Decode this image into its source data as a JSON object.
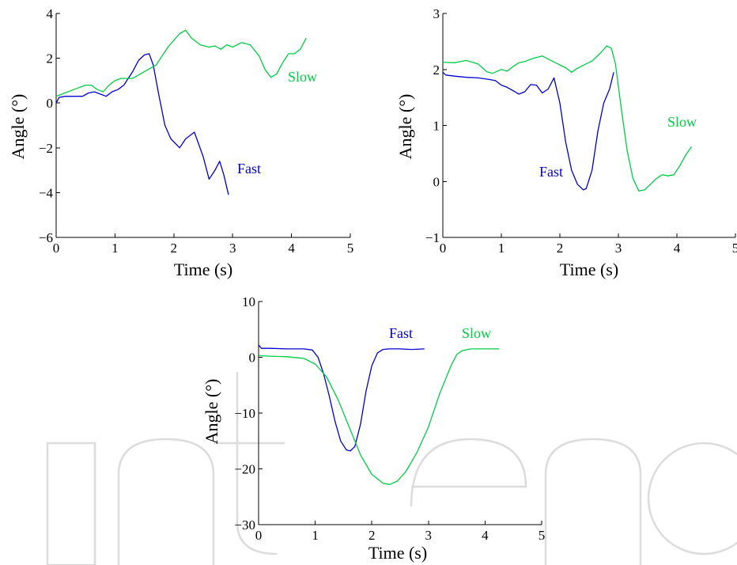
{
  "colors": {
    "fast": "#0000cc",
    "slow": "#00cc44",
    "watermark": "#dcdcdc"
  },
  "watermark": {
    "text": "IntechOpen"
  },
  "chart_data": [
    {
      "type": "line",
      "title": "",
      "xlabel": "Time (s)",
      "ylabel": "Angle (°)",
      "xlim": [
        0,
        5
      ],
      "ylim": [
        -6,
        4
      ],
      "xticks": [
        0,
        1,
        2,
        3,
        4,
        5
      ],
      "yticks": [
        -6,
        -4,
        -2,
        0,
        2,
        4
      ],
      "xtick_labels": [
        "0",
        "1",
        "2",
        "3",
        "4",
        "5"
      ],
      "ytick_labels": [
        "−6",
        "−4",
        "−2",
        "0",
        "2",
        "4"
      ],
      "grid": false,
      "series": [
        {
          "name": "Fast",
          "color": "#0000cc",
          "x": [
            0.0,
            0.05,
            0.15,
            0.3,
            0.45,
            0.55,
            0.65,
            0.75,
            0.85,
            0.95,
            1.05,
            1.15,
            1.3,
            1.4,
            1.5,
            1.58,
            1.65,
            1.75,
            1.85,
            1.95,
            2.1,
            2.2,
            2.35,
            2.5,
            2.6,
            2.7,
            2.78,
            2.85,
            2.93
          ],
          "y": [
            0.0,
            0.25,
            0.3,
            0.3,
            0.3,
            0.45,
            0.5,
            0.4,
            0.3,
            0.5,
            0.6,
            0.8,
            1.4,
            1.9,
            2.15,
            2.2,
            1.7,
            0.3,
            -1.0,
            -1.6,
            -2.0,
            -1.6,
            -1.3,
            -2.4,
            -3.4,
            -3.0,
            -2.6,
            -3.2,
            -4.1
          ]
        },
        {
          "name": "Slow",
          "color": "#00cc44",
          "x": [
            0.0,
            0.1,
            0.3,
            0.5,
            0.6,
            0.7,
            0.8,
            0.9,
            1.0,
            1.1,
            1.3,
            1.5,
            1.7,
            1.8,
            1.9,
            2.0,
            2.1,
            2.2,
            2.3,
            2.45,
            2.6,
            2.7,
            2.8,
            2.9,
            3.0,
            3.15,
            3.3,
            3.45,
            3.55,
            3.65,
            3.75,
            3.85,
            3.95,
            4.05,
            4.15,
            4.25
          ],
          "y": [
            0.3,
            0.4,
            0.6,
            0.8,
            0.8,
            0.6,
            0.5,
            0.8,
            1.0,
            1.1,
            1.1,
            1.4,
            1.7,
            2.1,
            2.5,
            2.8,
            3.1,
            3.25,
            2.9,
            2.6,
            2.5,
            2.55,
            2.4,
            2.6,
            2.5,
            2.7,
            2.6,
            2.1,
            1.5,
            1.15,
            1.3,
            1.8,
            2.2,
            2.2,
            2.4,
            2.9
          ]
        }
      ],
      "annotations": [
        {
          "text": "Slow",
          "series": "Slow"
        },
        {
          "text": "Fast",
          "series": "Fast"
        }
      ]
    },
    {
      "type": "line",
      "title": "",
      "xlabel": "Time (s)",
      "ylabel": "Angle (°)",
      "xlim": [
        0,
        5
      ],
      "ylim": [
        -1,
        3
      ],
      "xticks": [
        0,
        1,
        2,
        3,
        4,
        5
      ],
      "yticks": [
        -1,
        0,
        1,
        2,
        3
      ],
      "xtick_labels": [
        "0",
        "1",
        "2",
        "3",
        "4",
        "5"
      ],
      "ytick_labels": [
        "−1",
        "0",
        "1",
        "2",
        "3"
      ],
      "grid": false,
      "series": [
        {
          "name": "Fast",
          "color": "#0000cc",
          "x": [
            0.0,
            0.05,
            0.2,
            0.4,
            0.6,
            0.8,
            0.9,
            1.0,
            1.1,
            1.2,
            1.3,
            1.4,
            1.5,
            1.6,
            1.7,
            1.8,
            1.9,
            2.0,
            2.1,
            2.2,
            2.3,
            2.4,
            2.45,
            2.55,
            2.65,
            2.75,
            2.85,
            2.92
          ],
          "y": [
            1.95,
            1.9,
            1.88,
            1.86,
            1.85,
            1.82,
            1.8,
            1.72,
            1.68,
            1.62,
            1.56,
            1.6,
            1.73,
            1.72,
            1.58,
            1.65,
            1.85,
            1.4,
            0.7,
            0.2,
            -0.05,
            -0.15,
            -0.13,
            0.2,
            0.9,
            1.4,
            1.65,
            1.95
          ]
        },
        {
          "name": "Slow",
          "color": "#00cc44",
          "x": [
            0.0,
            0.2,
            0.4,
            0.6,
            0.75,
            0.85,
            1.0,
            1.1,
            1.2,
            1.3,
            1.4,
            1.55,
            1.7,
            1.85,
            2.0,
            2.1,
            2.2,
            2.3,
            2.45,
            2.55,
            2.7,
            2.8,
            2.88,
            2.95,
            3.05,
            3.15,
            3.25,
            3.35,
            3.45,
            3.55,
            3.65,
            3.75,
            3.85,
            3.95,
            4.05,
            4.15,
            4.25
          ],
          "y": [
            2.13,
            2.12,
            2.16,
            2.1,
            1.96,
            1.93,
            2.0,
            1.97,
            2.05,
            2.12,
            2.14,
            2.2,
            2.24,
            2.16,
            2.08,
            2.03,
            1.95,
            2.02,
            2.1,
            2.15,
            2.3,
            2.42,
            2.38,
            2.1,
            1.3,
            0.55,
            0.05,
            -0.17,
            -0.15,
            -0.05,
            0.05,
            0.12,
            0.1,
            0.12,
            0.28,
            0.47,
            0.62
          ]
        }
      ],
      "annotations": [
        {
          "text": "Slow",
          "series": "Slow"
        },
        {
          "text": "Fast",
          "series": "Fast"
        }
      ]
    },
    {
      "type": "line",
      "title": "",
      "xlabel": "Time (s)",
      "ylabel": "Angle (°)",
      "xlim": [
        0,
        5
      ],
      "ylim": [
        -30,
        10
      ],
      "xticks": [
        0,
        1,
        2,
        3,
        4,
        5
      ],
      "yticks": [
        -30,
        -20,
        -10,
        0,
        10
      ],
      "xtick_labels": [
        "0",
        "1",
        "2",
        "3",
        "4",
        "5"
      ],
      "ytick_labels": [
        "−30",
        "−20",
        "−10",
        "0",
        "10"
      ],
      "grid": false,
      "series": [
        {
          "name": "Fast",
          "color": "#0000cc",
          "x": [
            0.0,
            0.05,
            0.2,
            0.5,
            0.8,
            0.95,
            1.05,
            1.15,
            1.25,
            1.35,
            1.45,
            1.55,
            1.62,
            1.7,
            1.8,
            1.9,
            2.0,
            2.1,
            2.2,
            2.3,
            2.5,
            2.7,
            2.93
          ],
          "y": [
            2.2,
            1.6,
            1.6,
            1.5,
            1.5,
            1.3,
            0.0,
            -3.0,
            -7.0,
            -11.5,
            -15.0,
            -16.6,
            -16.8,
            -16.0,
            -12.0,
            -6.0,
            -1.5,
            0.8,
            1.4,
            1.5,
            1.5,
            1.4,
            1.5
          ]
        },
        {
          "name": "Slow",
          "color": "#00cc44",
          "x": [
            0.0,
            0.2,
            0.5,
            0.8,
            1.0,
            1.2,
            1.4,
            1.6,
            1.8,
            2.0,
            2.2,
            2.32,
            2.45,
            2.6,
            2.8,
            3.0,
            3.2,
            3.4,
            3.5,
            3.6,
            3.75,
            4.0,
            4.25
          ],
          "y": [
            0.3,
            0.2,
            0.1,
            -0.2,
            -1.2,
            -3.5,
            -7.5,
            -12.5,
            -17.5,
            -21.0,
            -22.6,
            -22.8,
            -22.2,
            -20.5,
            -17.0,
            -12.5,
            -6.5,
            -1.5,
            0.5,
            1.2,
            1.5,
            1.5,
            1.5
          ]
        }
      ],
      "annotations": [
        {
          "text": "Fast",
          "series": "Fast"
        },
        {
          "text": "Slow",
          "series": "Slow"
        }
      ]
    }
  ]
}
